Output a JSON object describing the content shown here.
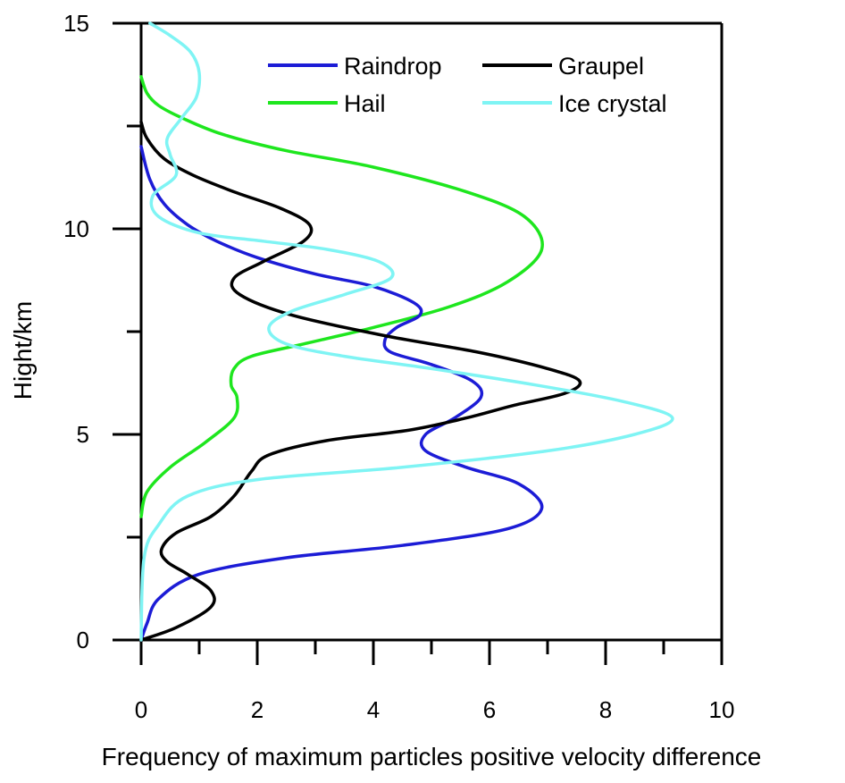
{
  "chart_data": {
    "type": "line",
    "xlabel": "Frequency of maximum particles positive velocity difference",
    "ylabel": "Hight/km",
    "xlim": [
      0,
      10
    ],
    "ylim": [
      0,
      15
    ],
    "xticks": [
      "0",
      "2",
      "4",
      "6",
      "8",
      "10"
    ],
    "yticks": [
      "0",
      "5",
      "10",
      "15"
    ],
    "legend_position": "top-right",
    "series": [
      {
        "name": "Raindrop",
        "color": "#1c1cd6",
        "points": [
          [
            0,
            0
          ],
          [
            0.1,
            0.4
          ],
          [
            0.3,
            1.0
          ],
          [
            1.0,
            1.6
          ],
          [
            2.5,
            2.0
          ],
          [
            4.5,
            2.3
          ],
          [
            6.3,
            2.7
          ],
          [
            6.9,
            3.2
          ],
          [
            6.5,
            3.8
          ],
          [
            5.6,
            4.2
          ],
          [
            4.9,
            4.6
          ],
          [
            4.9,
            5.0
          ],
          [
            5.4,
            5.4
          ],
          [
            5.85,
            5.9
          ],
          [
            5.7,
            6.3
          ],
          [
            5.0,
            6.7
          ],
          [
            4.3,
            7.0
          ],
          [
            4.2,
            7.3
          ],
          [
            4.4,
            7.6
          ],
          [
            4.8,
            7.9
          ],
          [
            4.7,
            8.2
          ],
          [
            4.0,
            8.6
          ],
          [
            3.0,
            8.9
          ],
          [
            2.0,
            9.3
          ],
          [
            1.3,
            9.7
          ],
          [
            0.8,
            10.1
          ],
          [
            0.4,
            10.6
          ],
          [
            0.15,
            11.2
          ],
          [
            0,
            12.0
          ]
        ]
      },
      {
        "name": "Graupel",
        "color": "#000000",
        "points": [
          [
            0,
            0
          ],
          [
            0.6,
            0.3
          ],
          [
            1.2,
            0.8
          ],
          [
            1.2,
            1.2
          ],
          [
            0.8,
            1.6
          ],
          [
            0.45,
            1.9
          ],
          [
            0.35,
            2.2
          ],
          [
            0.6,
            2.6
          ],
          [
            1.2,
            3.0
          ],
          [
            1.6,
            3.5
          ],
          [
            1.9,
            4.1
          ],
          [
            2.2,
            4.5
          ],
          [
            3.2,
            4.85
          ],
          [
            4.6,
            5.1
          ],
          [
            5.6,
            5.4
          ],
          [
            6.4,
            5.7
          ],
          [
            7.3,
            6.0
          ],
          [
            7.55,
            6.3
          ],
          [
            7.0,
            6.6
          ],
          [
            5.8,
            7.0
          ],
          [
            4.2,
            7.4
          ],
          [
            2.6,
            7.9
          ],
          [
            1.7,
            8.4
          ],
          [
            1.6,
            8.8
          ],
          [
            2.1,
            9.2
          ],
          [
            2.8,
            9.7
          ],
          [
            2.9,
            10.1
          ],
          [
            2.4,
            10.5
          ],
          [
            1.6,
            10.9
          ],
          [
            0.9,
            11.3
          ],
          [
            0.4,
            11.7
          ],
          [
            0.1,
            12.2
          ],
          [
            0,
            12.6
          ]
        ]
      },
      {
        "name": "Hail",
        "color": "#1ee61e",
        "points": [
          [
            0,
            3.0
          ],
          [
            0.1,
            3.6
          ],
          [
            0.5,
            4.2
          ],
          [
            1.1,
            4.8
          ],
          [
            1.6,
            5.4
          ],
          [
            1.65,
            5.9
          ],
          [
            1.55,
            6.2
          ],
          [
            1.6,
            6.6
          ],
          [
            1.9,
            6.9
          ],
          [
            2.8,
            7.2
          ],
          [
            4.0,
            7.6
          ],
          [
            5.3,
            8.1
          ],
          [
            6.3,
            8.7
          ],
          [
            6.9,
            9.5
          ],
          [
            6.6,
            10.3
          ],
          [
            5.6,
            10.9
          ],
          [
            4.0,
            11.5
          ],
          [
            2.5,
            11.9
          ],
          [
            1.4,
            12.3
          ],
          [
            0.7,
            12.7
          ],
          [
            0.3,
            13.0
          ],
          [
            0.1,
            13.3
          ],
          [
            0,
            13.7
          ]
        ]
      },
      {
        "name": "Ice crystal",
        "color": "#7ff4f4",
        "points": [
          [
            0,
            0
          ],
          [
            0.05,
            2.0
          ],
          [
            0.3,
            2.8
          ],
          [
            0.8,
            3.5
          ],
          [
            2.0,
            3.9
          ],
          [
            4.5,
            4.2
          ],
          [
            7.0,
            4.6
          ],
          [
            8.5,
            5.0
          ],
          [
            9.15,
            5.4
          ],
          [
            8.3,
            5.8
          ],
          [
            6.8,
            6.2
          ],
          [
            5.0,
            6.6
          ],
          [
            3.5,
            6.9
          ],
          [
            2.5,
            7.2
          ],
          [
            2.2,
            7.6
          ],
          [
            2.6,
            8.0
          ],
          [
            3.5,
            8.4
          ],
          [
            4.3,
            8.8
          ],
          [
            4.1,
            9.2
          ],
          [
            3.2,
            9.5
          ],
          [
            2.1,
            9.7
          ],
          [
            1.0,
            9.9
          ],
          [
            0.3,
            10.3
          ],
          [
            0.2,
            10.8
          ],
          [
            0.6,
            11.3
          ],
          [
            0.5,
            11.8
          ],
          [
            0.45,
            12.2
          ],
          [
            0.7,
            12.7
          ],
          [
            0.95,
            13.2
          ],
          [
            1.0,
            13.8
          ],
          [
            0.85,
            14.3
          ],
          [
            0.5,
            14.7
          ],
          [
            0.15,
            15.0
          ]
        ]
      }
    ]
  }
}
